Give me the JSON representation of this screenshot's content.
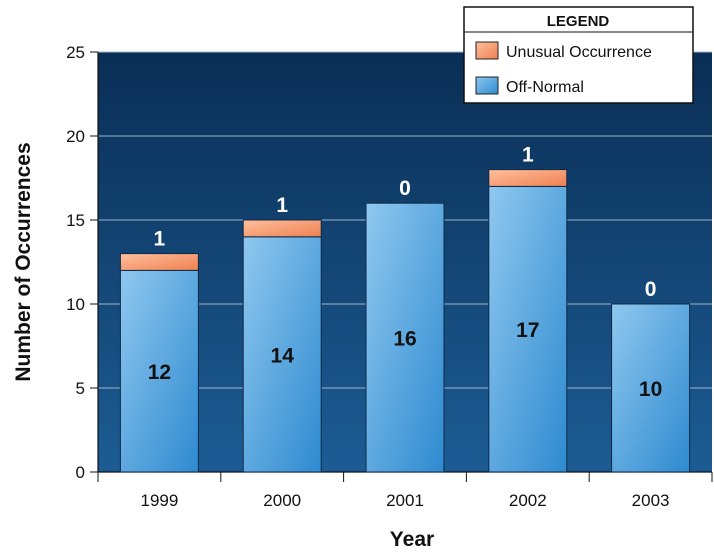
{
  "chart_data": {
    "type": "bar",
    "stacked": true,
    "categories": [
      "1999",
      "2000",
      "2001",
      "2002",
      "2003"
    ],
    "series": [
      {
        "name": "Off-Normal",
        "values": [
          12,
          14,
          16,
          17,
          10
        ],
        "color": "#5aaae0"
      },
      {
        "name": "Unusual Occurrence",
        "values": [
          1,
          1,
          0,
          1,
          0
        ],
        "color": "#f59a6e"
      }
    ],
    "xlabel": "Year",
    "ylabel": "Number of Occurrences",
    "ylim": [
      0,
      25
    ],
    "yticks": [
      0,
      5,
      10,
      15,
      20,
      25
    ],
    "grid": true,
    "legend": {
      "title": "LEGEND",
      "position": "top-right"
    },
    "background_color": "#0b3a66"
  }
}
